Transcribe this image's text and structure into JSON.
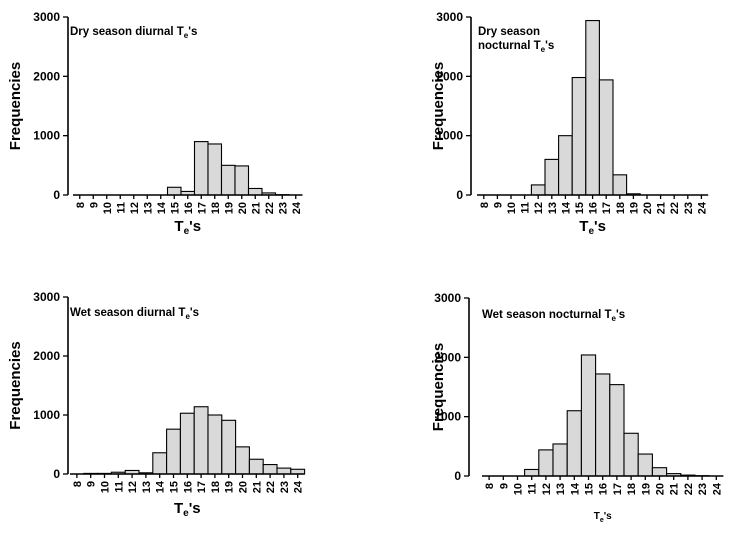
{
  "chart_data": [
    {
      "type": "bar",
      "panel": "top-left",
      "title_lines": [
        {
          "text": "Dry season diurnal T",
          "sub": "e",
          "after": "'s"
        }
      ],
      "ylabel": "Frequencies",
      "xlabel": {
        "text": "T",
        "sub": "e",
        "after": "'s"
      },
      "categories": [
        "8",
        "9",
        "10",
        "11",
        "12",
        "13",
        "14",
        "15",
        "16",
        "17",
        "18",
        "19",
        "20",
        "21",
        "22",
        "23",
        "24"
      ],
      "values": [
        0,
        0,
        0,
        0,
        0,
        0,
        0,
        130,
        60,
        900,
        860,
        500,
        490,
        110,
        35,
        5,
        0
      ],
      "ylim": [
        0,
        3000
      ],
      "yticks": [
        0,
        1000,
        2000,
        3000
      ]
    },
    {
      "type": "bar",
      "panel": "top-right",
      "title_lines": [
        {
          "text": "Dry season"
        },
        {
          "text": "nocturnal T",
          "sub": "e",
          "after": "'s"
        }
      ],
      "ylabel": "Frequencies",
      "xlabel": {
        "text": "T",
        "sub": "e",
        "after": "'s"
      },
      "categories": [
        "8",
        "9",
        "10",
        "11",
        "12",
        "13",
        "14",
        "15",
        "16",
        "17",
        "18",
        "19",
        "20",
        "21",
        "22",
        "23",
        "24"
      ],
      "values": [
        0,
        0,
        0,
        0,
        170,
        600,
        1000,
        1980,
        2940,
        1940,
        340,
        20,
        0,
        0,
        0,
        0,
        0
      ],
      "ylim": [
        0,
        3000
      ],
      "yticks": [
        0,
        1000,
        2000,
        3000
      ]
    },
    {
      "type": "bar",
      "panel": "bottom-left",
      "title_lines": [
        {
          "text": "Wet season diurnal T",
          "sub": "e",
          "after": "'s"
        }
      ],
      "ylabel": "Frequencies",
      "xlabel": {
        "text": "T",
        "sub": "e",
        "after": "'s"
      },
      "categories": [
        "8",
        "9",
        "10",
        "11",
        "12",
        "13",
        "14",
        "15",
        "16",
        "17",
        "18",
        "19",
        "20",
        "21",
        "22",
        "23",
        "24"
      ],
      "values": [
        0,
        10,
        10,
        30,
        60,
        20,
        360,
        760,
        1030,
        1140,
        1000,
        910,
        460,
        250,
        160,
        100,
        80
      ],
      "ylim": [
        0,
        3000
      ],
      "yticks": [
        0,
        1000,
        2000,
        3000
      ]
    },
    {
      "type": "bar",
      "panel": "bottom-right",
      "title_lines": [
        {
          "text": "Wet season nocturnal T",
          "sub": "e",
          "after": "'s"
        }
      ],
      "ylabel": "Frequencies",
      "xlabel": {
        "text": "T",
        "sub": "e",
        "after": "'s"
      },
      "categories": [
        "8",
        "9",
        "10",
        "11",
        "12",
        "13",
        "14",
        "15",
        "16",
        "17",
        "18",
        "19",
        "20",
        "21",
        "22",
        "23",
        "24"
      ],
      "values": [
        0,
        0,
        0,
        110,
        440,
        540,
        1100,
        2040,
        1720,
        1540,
        720,
        370,
        140,
        40,
        15,
        5,
        0
      ],
      "ylim": [
        0,
        3000
      ],
      "yticks": [
        0,
        1000,
        2000,
        3000
      ]
    }
  ]
}
